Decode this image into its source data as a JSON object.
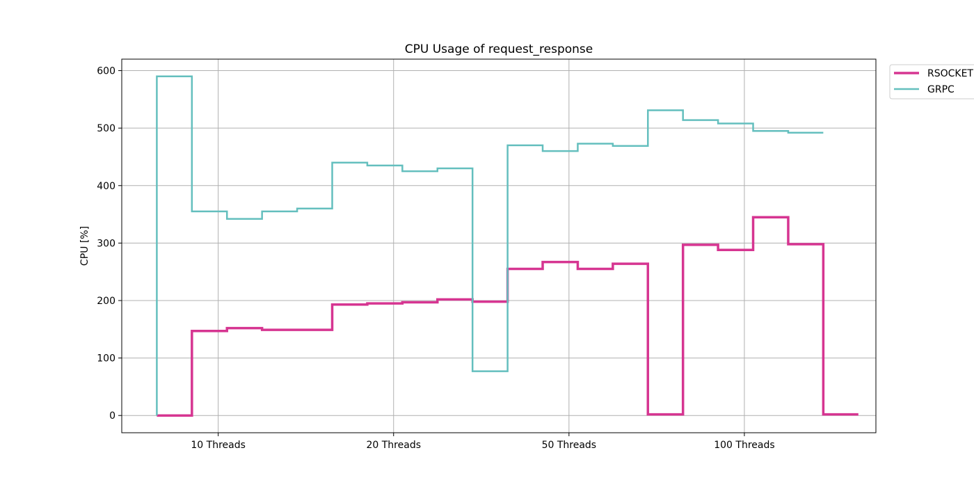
{
  "chart_data": {
    "type": "line",
    "style": "step",
    "title": "CPU Usage of request_response",
    "xlabel": "",
    "ylabel": "CPU [%]",
    "ylim": [
      -30,
      620
    ],
    "xlim": [
      -1,
      42
    ],
    "yticks": [
      0,
      100,
      200,
      300,
      400,
      500,
      600
    ],
    "xticks": [
      {
        "label": "10 Threads",
        "x": 4.5
      },
      {
        "label": "20 Threads",
        "x": 14.5
      },
      {
        "label": "50 Threads",
        "x": 24.5
      },
      {
        "label": "100 Threads",
        "x": 34.5
      }
    ],
    "grid": true,
    "legend_position": "outside-top-right",
    "series": [
      {
        "name": "RSOCKET",
        "color": "#d63591",
        "x": [
          1,
          3,
          5,
          7,
          9,
          11,
          13,
          15,
          17,
          19,
          21,
          23,
          25,
          27,
          29,
          31,
          33,
          35,
          37,
          39,
          41
        ],
        "values": [
          0,
          147,
          152,
          149,
          149,
          193,
          195,
          197,
          202,
          198,
          255,
          267,
          255,
          264,
          2,
          297,
          288,
          345,
          298,
          2,
          2
        ]
      },
      {
        "name": "GRPC",
        "color": "#64bfbe",
        "x": [
          1,
          1,
          3,
          5,
          7,
          9,
          11,
          13,
          15,
          17,
          19,
          21,
          23,
          25,
          27,
          29,
          31,
          33,
          35,
          37,
          39
        ],
        "values": [
          0,
          590,
          355,
          342,
          355,
          360,
          440,
          435,
          425,
          430,
          77,
          470,
          460,
          473,
          469,
          531,
          514,
          508,
          495,
          492,
          492
        ]
      }
    ]
  }
}
